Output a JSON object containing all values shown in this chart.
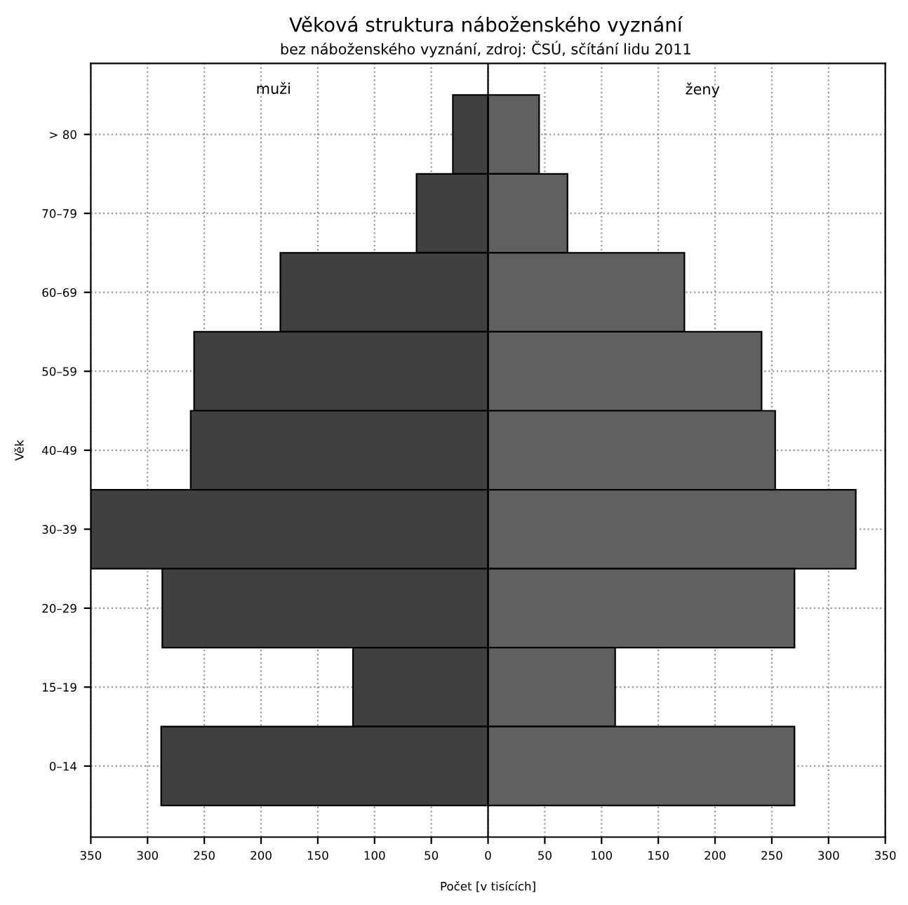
{
  "chart_data": {
    "type": "bar",
    "orientation": "horizontal",
    "stacked": true,
    "title": "Věková struktura náboženského vyznání",
    "subtitle": "bez náboženského vyznání, zdroj: ČSÚ, sčítání lidu 2011",
    "xlabel": "Počet [v tisících]",
    "ylabel": "Věk",
    "annotations": [
      "muži",
      "ženy"
    ],
    "categories": [
      "> 80",
      "70–79",
      "60–69",
      "50–59",
      "40–49",
      "30–39",
      "20–29",
      "15–19",
      "0–14"
    ],
    "series": [
      {
        "color": "#404040",
        "values": [
          -31,
          -63,
          -183,
          -259,
          -262,
          -350,
          -287,
          -119,
          -288
        ]
      },
      {
        "color": "#606060",
        "values": [
          45,
          70,
          173,
          241,
          253,
          324,
          270,
          112,
          270
        ]
      }
    ],
    "xlim": [
      -350,
      350
    ],
    "xticks": [
      {
        "value": -350,
        "label": "350"
      },
      {
        "value": -300,
        "label": "300"
      },
      {
        "value": -250,
        "label": "250"
      },
      {
        "value": -200,
        "label": "200"
      },
      {
        "value": -150,
        "label": "150"
      },
      {
        "value": -100,
        "label": "100"
      },
      {
        "value": -50,
        "label": "50"
      },
      0,
      50,
      100,
      150,
      200,
      250,
      300,
      350
    ],
    "grid": true,
    "legend": false
  }
}
